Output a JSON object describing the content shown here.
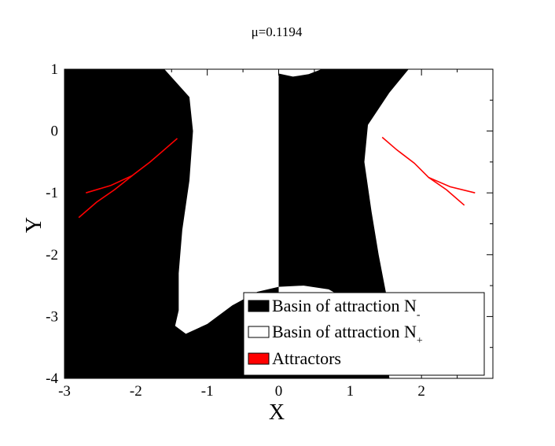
{
  "chart_data": {
    "type": "basin-of-attraction map",
    "title": "μ=0.1194",
    "xlabel": "X",
    "ylabel": "Y",
    "xlim": [
      -3,
      3
    ],
    "ylim": [
      -4,
      1
    ],
    "xticks": [
      {
        "v": -3,
        "label": "-3"
      },
      {
        "v": -2,
        "label": "-2"
      },
      {
        "v": -1,
        "label": "-1"
      },
      {
        "v": 0,
        "label": "0"
      },
      {
        "v": 1,
        "label": "1"
      },
      {
        "v": 2,
        "label": "2"
      }
    ],
    "yticks": [
      {
        "v": 1,
        "label": "1"
      },
      {
        "v": 0,
        "label": "0"
      },
      {
        "v": -1,
        "label": "-1"
      },
      {
        "v": -2,
        "label": "-2"
      },
      {
        "v": -3,
        "label": "-3"
      },
      {
        "v": -4,
        "label": "-4"
      }
    ],
    "legend": {
      "position": "bottom-right",
      "entries": [
        {
          "label": "Basin of attraction N",
          "sub": "-",
          "color": "#000000"
        },
        {
          "label": "Basin of attraction N",
          "sub": "+",
          "color": "#ffffff"
        },
        {
          "label": "Attractors",
          "sub": "",
          "color": "#ff0000"
        }
      ]
    },
    "regions": [
      {
        "name": "basin-N-plus-region",
        "color": "#ffffff",
        "points": [
          [
            -1.6,
            1.0
          ],
          [
            -1.25,
            0.55
          ],
          [
            -1.2,
            0.0
          ],
          [
            -1.25,
            -0.8
          ],
          [
            -1.35,
            -1.6
          ],
          [
            -1.4,
            -2.3
          ],
          [
            -1.4,
            -2.9
          ],
          [
            -1.45,
            -3.15
          ],
          [
            -1.3,
            -3.28
          ],
          [
            -1.0,
            -3.12
          ],
          [
            -0.65,
            -2.82
          ],
          [
            -0.3,
            -2.6
          ],
          [
            0.0,
            -2.52
          ],
          [
            0.0,
            -2.6
          ],
          [
            0.0,
            0.45
          ],
          [
            0.0,
            1.0
          ]
        ]
      },
      {
        "name": "basin-N-plus-region",
        "color": "#ffffff",
        "points": [
          [
            0.0,
            1.0
          ],
          [
            0.0,
            0.93
          ],
          [
            0.2,
            0.88
          ],
          [
            0.42,
            0.92
          ],
          [
            0.6,
            1.0
          ]
        ]
      },
      {
        "name": "basin-N-plus-region",
        "color": "#ffffff",
        "points": [
          [
            1.82,
            1.0
          ],
          [
            1.55,
            0.62
          ],
          [
            1.25,
            0.1
          ],
          [
            1.2,
            -0.5
          ],
          [
            1.3,
            -1.3
          ],
          [
            1.4,
            -2.0
          ],
          [
            1.5,
            -2.6
          ],
          [
            1.55,
            -3.0
          ],
          [
            1.5,
            -3.35
          ],
          [
            1.55,
            -4.0
          ],
          [
            3.0,
            -4.0
          ],
          [
            3.0,
            1.0
          ]
        ]
      },
      {
        "name": "basin-N-plus-region",
        "color": "#ffffff",
        "points": [
          [
            0.0,
            -2.52
          ],
          [
            0.35,
            -2.5
          ],
          [
            0.7,
            -2.56
          ],
          [
            0.95,
            -2.72
          ],
          [
            1.0,
            -2.85
          ],
          [
            0.85,
            -2.75
          ],
          [
            0.55,
            -2.68
          ],
          [
            0.2,
            -2.65
          ],
          [
            0.0,
            -2.65
          ]
        ]
      }
    ],
    "attractors": [
      {
        "name": "attractor-left-upper",
        "points": [
          [
            -1.42,
            -0.12
          ],
          [
            -1.6,
            -0.3
          ],
          [
            -1.8,
            -0.5
          ],
          [
            -2.05,
            -0.72
          ],
          [
            -2.35,
            -0.88
          ],
          [
            -2.7,
            -1.0
          ]
        ]
      },
      {
        "name": "attractor-left-lower",
        "points": [
          [
            -2.05,
            -0.72
          ],
          [
            -2.3,
            -0.95
          ],
          [
            -2.55,
            -1.15
          ],
          [
            -2.8,
            -1.4
          ]
        ]
      },
      {
        "name": "attractor-right-upper",
        "points": [
          [
            1.45,
            -0.1
          ],
          [
            1.65,
            -0.3
          ],
          [
            1.9,
            -0.52
          ],
          [
            2.1,
            -0.75
          ],
          [
            2.4,
            -0.9
          ],
          [
            2.75,
            -1.0
          ]
        ]
      },
      {
        "name": "attractor-right-lower",
        "points": [
          [
            2.1,
            -0.75
          ],
          [
            2.35,
            -0.95
          ],
          [
            2.6,
            -1.2
          ]
        ]
      }
    ]
  }
}
